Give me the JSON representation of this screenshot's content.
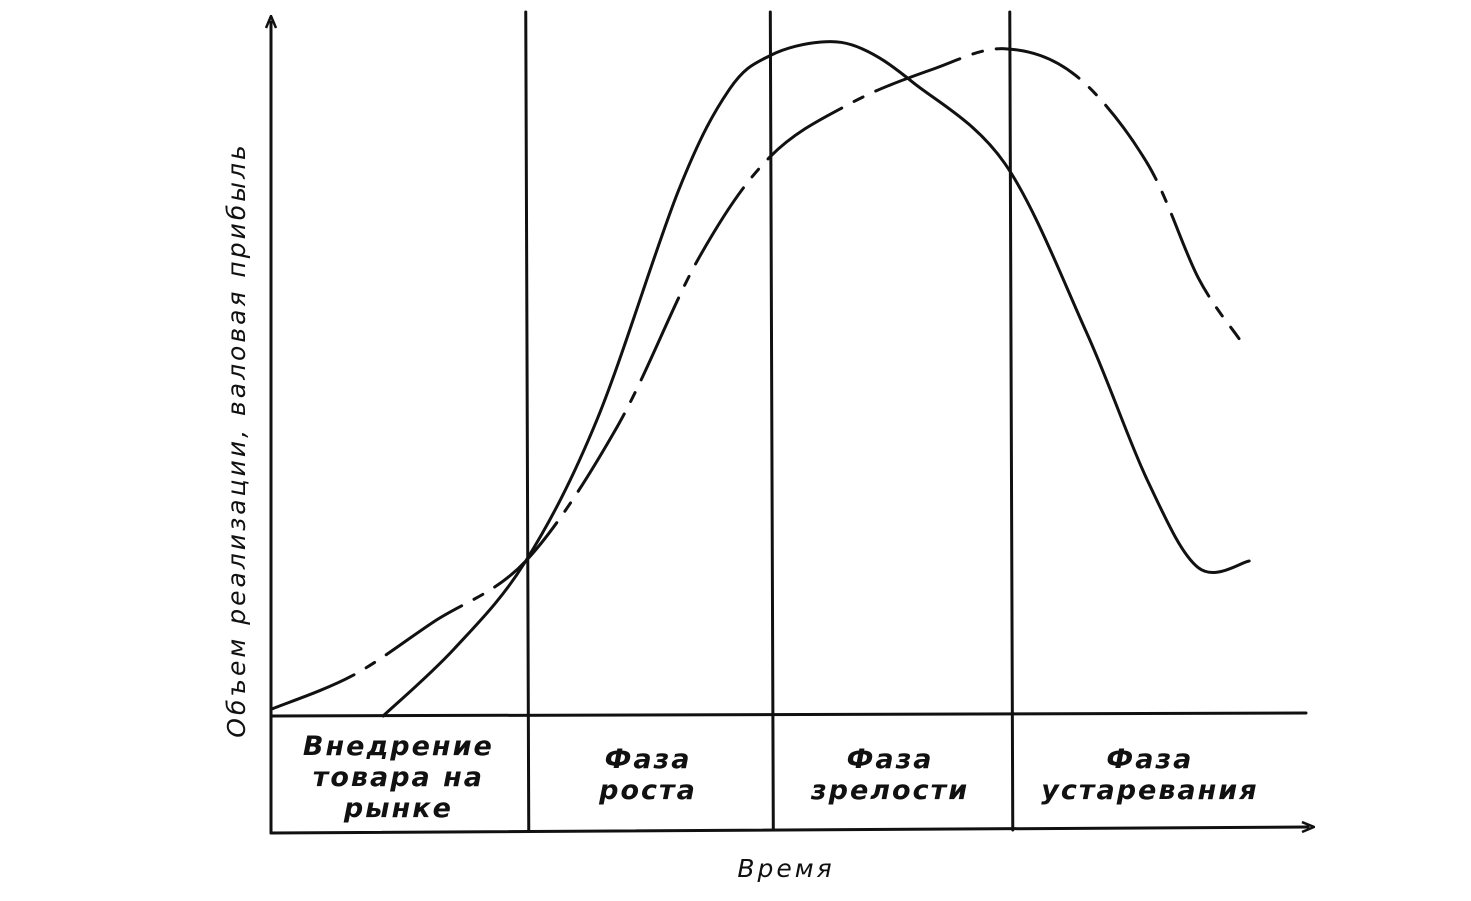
{
  "chart_data": {
    "type": "line",
    "title": "",
    "xlabel": "Время",
    "ylabel": "Объем реализации, валовая прибыль",
    "xlim": [
      0,
      1
    ],
    "ylim": [
      0,
      1
    ],
    "grid": false,
    "legend": "none",
    "phases": [
      {
        "lines": [
          "Внедрение",
          "товара на",
          "рынке"
        ],
        "start": 0.0,
        "end": 0.25
      },
      {
        "lines": [
          "Фаза",
          "роста"
        ],
        "start": 0.25,
        "end": 0.49
      },
      {
        "lines": [
          "Фаза",
          "зрелости"
        ],
        "start": 0.49,
        "end": 0.725
      },
      {
        "lines": [
          "Фаза",
          "устаревания"
        ],
        "start": 0.725,
        "end": 1.0
      }
    ],
    "series": [
      {
        "style": "dashdot",
        "x": [
          0.0,
          0.08,
          0.16,
          0.25,
          0.34,
          0.42,
          0.49,
          0.57,
          0.65,
          0.72,
          0.79,
          0.86,
          0.91,
          0.95
        ],
        "y": [
          0.01,
          0.06,
          0.14,
          0.23,
          0.43,
          0.68,
          0.83,
          0.91,
          0.96,
          0.99,
          0.95,
          0.82,
          0.65,
          0.56
        ]
      },
      {
        "style": "solid",
        "x": [
          0.11,
          0.18,
          0.25,
          0.32,
          0.4,
          0.45,
          0.49,
          0.54,
          0.58,
          0.63,
          0.72,
          0.8,
          0.86,
          0.91,
          0.96
        ],
        "y": [
          0.0,
          0.1,
          0.23,
          0.44,
          0.78,
          0.93,
          0.98,
          1.0,
          0.99,
          0.94,
          0.82,
          0.57,
          0.35,
          0.22,
          0.23
        ]
      }
    ]
  }
}
